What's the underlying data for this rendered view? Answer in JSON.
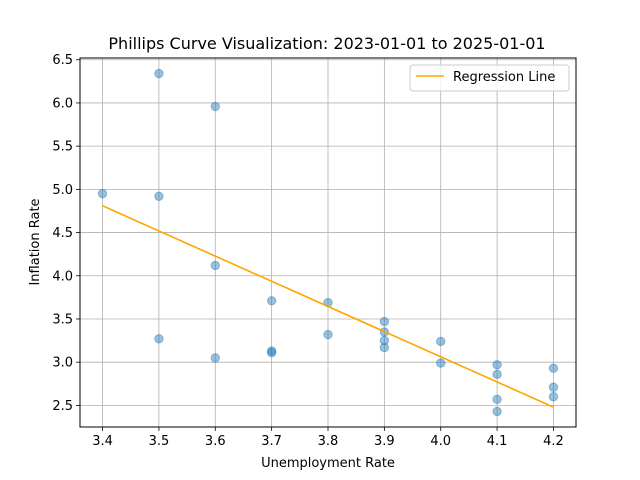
{
  "chart_data": {
    "type": "scatter",
    "title": "Phillips Curve Visualization: 2023-01-01 to 2025-01-01",
    "xlabel": "Unemployment Rate",
    "ylabel": "Inflation Rate",
    "xlim": [
      3.36,
      4.24
    ],
    "ylim": [
      2.25,
      6.52
    ],
    "x_ticks": [
      "3.4",
      "3.5",
      "3.6",
      "3.7",
      "3.8",
      "3.9",
      "4.0",
      "4.1",
      "4.2"
    ],
    "y_ticks": [
      "2.5",
      "3.0",
      "3.5",
      "4.0",
      "4.5",
      "5.0",
      "5.5",
      "6.0",
      "6.5"
    ],
    "grid": true,
    "legend_position": "top-right",
    "colors": {
      "points": "#1f77b4",
      "regression": "#ffa500"
    },
    "series": [
      {
        "kind": "points",
        "x": [
          3.4,
          3.5,
          3.5,
          3.5,
          3.6,
          3.6,
          3.6,
          3.7,
          3.7,
          3.7,
          3.8,
          3.8,
          3.9,
          3.9,
          3.9,
          3.9,
          4.0,
          4.0,
          4.1,
          4.1,
          4.1,
          4.1,
          4.2,
          4.2,
          4.2
        ],
        "y": [
          4.95,
          6.34,
          4.92,
          3.27,
          5.96,
          4.12,
          3.05,
          3.71,
          3.13,
          3.11,
          3.69,
          3.32,
          3.47,
          3.35,
          3.25,
          3.17,
          3.24,
          2.99,
          2.97,
          2.86,
          2.57,
          2.43,
          2.93,
          2.71,
          2.6
        ]
      },
      {
        "kind": "line",
        "name": "Regression Line",
        "x": [
          3.4,
          4.2
        ],
        "y": [
          4.81,
          2.48
        ]
      }
    ]
  }
}
